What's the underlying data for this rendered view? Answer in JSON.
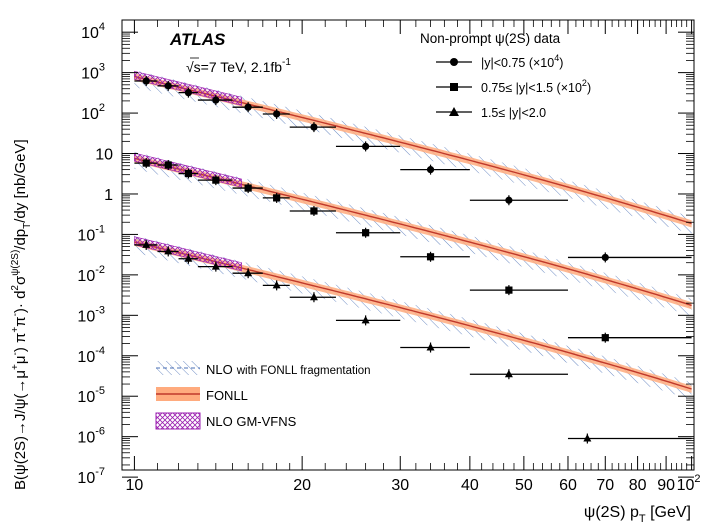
{
  "chart_data": {
    "type": "scatter",
    "experiment": "ATLAS",
    "energy_label": "√s=7 TeV, 2.1fb",
    "energy_sup": "-1",
    "xlabel": "ψ(2S) p",
    "xlabel_sub": "T",
    "xlabel_unit": " [GeV]",
    "ylabel": "B(ψ(2S)→J/ψ(→μ⁺μ⁻) π⁺π⁻)· d²σ^ψ(2S)/dp_T/dy [nb/GeV]",
    "ylabel_parts": [
      "B(ψ(2S)→J/ψ(→μ",
      "+",
      "μ",
      "-",
      ") π",
      "+",
      "π",
      "-",
      ")· d",
      "2",
      "σ",
      "ψ(2S)",
      "/dp",
      "T",
      "/dy [nb/GeV]"
    ],
    "xscale": "log",
    "yscale": "log",
    "xlim": [
      9.5,
      101
    ],
    "ylim": [
      1.5e-07,
      20000
    ],
    "x_major_ticks": [
      10,
      20,
      30,
      40,
      50,
      60,
      70,
      80,
      90,
      100
    ],
    "x_tick_labels": [
      "10",
      "20",
      "30",
      "40",
      "50",
      "60",
      "70",
      "80",
      "90",
      "10"
    ],
    "x_last_label_sup": "2",
    "y_tick_labels": [
      {
        "v": 10000.0,
        "base": "10",
        "exp": "4"
      },
      {
        "v": 1000.0,
        "base": "10",
        "exp": "3"
      },
      {
        "v": 100.0,
        "base": "10",
        "exp": "2"
      },
      {
        "v": 10,
        "base": "10",
        "exp": ""
      },
      {
        "v": 1,
        "base": "1",
        "exp": ""
      },
      {
        "v": 0.1,
        "base": "10",
        "exp": "-1"
      },
      {
        "v": 0.01,
        "base": "10",
        "exp": "-2"
      },
      {
        "v": 0.001,
        "base": "10",
        "exp": "-3"
      },
      {
        "v": 0.0001,
        "base": "10",
        "exp": "-4"
      },
      {
        "v": 1e-05,
        "base": "10",
        "exp": "-5"
      },
      {
        "v": 1e-06,
        "base": "10",
        "exp": "-6"
      },
      {
        "v": 1e-07,
        "base": "10",
        "exp": "-7"
      }
    ],
    "legend_title": "Non-prompt ψ(2S) data",
    "series": [
      {
        "name": "|y|<0.75 (×10⁴)",
        "label_main": "|y|<0.75 (×10",
        "label_sup": "4",
        "label_end": ")",
        "marker": "circle",
        "x": [
          10.5,
          11.5,
          12.5,
          14,
          16,
          18,
          21,
          26,
          34,
          47,
          70
        ],
        "xerr": [
          [
            10,
            11
          ],
          [
            11,
            12
          ],
          [
            12,
            13
          ],
          [
            13,
            15
          ],
          [
            15,
            17
          ],
          [
            17,
            19
          ],
          [
            19,
            23
          ],
          [
            23,
            30
          ],
          [
            30,
            40
          ],
          [
            40,
            60
          ],
          [
            60,
            100
          ]
        ],
        "y": [
          620,
          470,
          320,
          210,
          140,
          95,
          45,
          15,
          4,
          0.7,
          0.027
        ],
        "theory_norm": 800
      },
      {
        "name": "0.75≤ |y|<1.5 (×10²)",
        "label_main": "0.75≤ |y|<1.5 (×10",
        "label_sup": "2",
        "label_end": ")",
        "marker": "square",
        "x": [
          10.5,
          11.5,
          12.5,
          14,
          16,
          18,
          21,
          26,
          34,
          47,
          70
        ],
        "xerr": [
          [
            10,
            11
          ],
          [
            11,
            12
          ],
          [
            12,
            13
          ],
          [
            13,
            15
          ],
          [
            15,
            17
          ],
          [
            17,
            19
          ],
          [
            19,
            23
          ],
          [
            23,
            30
          ],
          [
            30,
            40
          ],
          [
            40,
            60
          ],
          [
            60,
            100
          ]
        ],
        "y": [
          5.8,
          5.2,
          3.2,
          2.2,
          1.4,
          0.8,
          0.38,
          0.11,
          0.028,
          0.0042,
          0.00028
        ],
        "theory_norm": 7.6
      },
      {
        "name": "1.5≤ |y|<2.0",
        "label_main": "1.5≤ |y|<2.0",
        "label_sup": "",
        "label_end": "",
        "marker": "triangle",
        "x": [
          10.5,
          11.5,
          12.5,
          14,
          16,
          18,
          21,
          26,
          34,
          47,
          65
        ],
        "xerr": [
          [
            10,
            11
          ],
          [
            11,
            12
          ],
          [
            12,
            13
          ],
          [
            13,
            15
          ],
          [
            15,
            17
          ],
          [
            17,
            19
          ],
          [
            19,
            23
          ],
          [
            23,
            30
          ],
          [
            30,
            40
          ],
          [
            40,
            60
          ],
          [
            60,
            100
          ]
        ],
        "y": [
          0.055,
          0.038,
          0.025,
          0.016,
          0.011,
          0.0055,
          0.0028,
          0.00075,
          0.00016,
          3.5e-05,
          9e-07
        ],
        "theory_norm": 0.065
      }
    ],
    "theory_bands": [
      {
        "name": "NLO",
        "label_rest": "with FONLL fragmentation",
        "color": "#4a6fb5",
        "style": "hatched-dashed"
      },
      {
        "name": "FONLL",
        "color": "#ff7a3d",
        "line_color": "#c0392b",
        "style": "filled"
      },
      {
        "name": "NLO GM-VFNS",
        "color": "#9b1fb0",
        "style": "crosshatch"
      }
    ]
  }
}
